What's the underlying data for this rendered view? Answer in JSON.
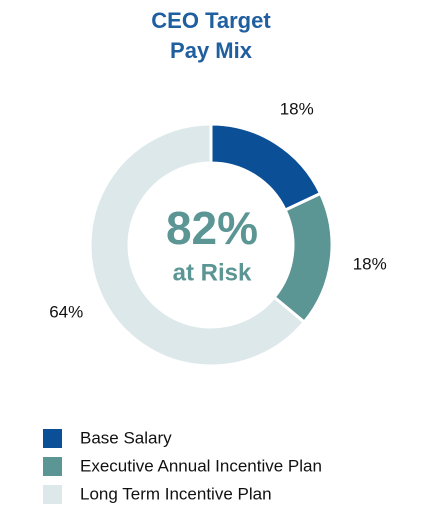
{
  "chart_data": {
    "type": "donut",
    "title": "CEO Target Pay Mix",
    "center_label": "82%",
    "center_sublabel": "at Risk",
    "categories": [
      "Base Salary",
      "Executive Annual Incentive Plan",
      "Long Term Incentive Plan"
    ],
    "values": [
      18,
      18,
      64
    ],
    "value_labels": [
      "18%",
      "18%",
      "64%"
    ],
    "colors": [
      "#0b4f96",
      "#5b9594",
      "#dde8ea"
    ]
  }
}
